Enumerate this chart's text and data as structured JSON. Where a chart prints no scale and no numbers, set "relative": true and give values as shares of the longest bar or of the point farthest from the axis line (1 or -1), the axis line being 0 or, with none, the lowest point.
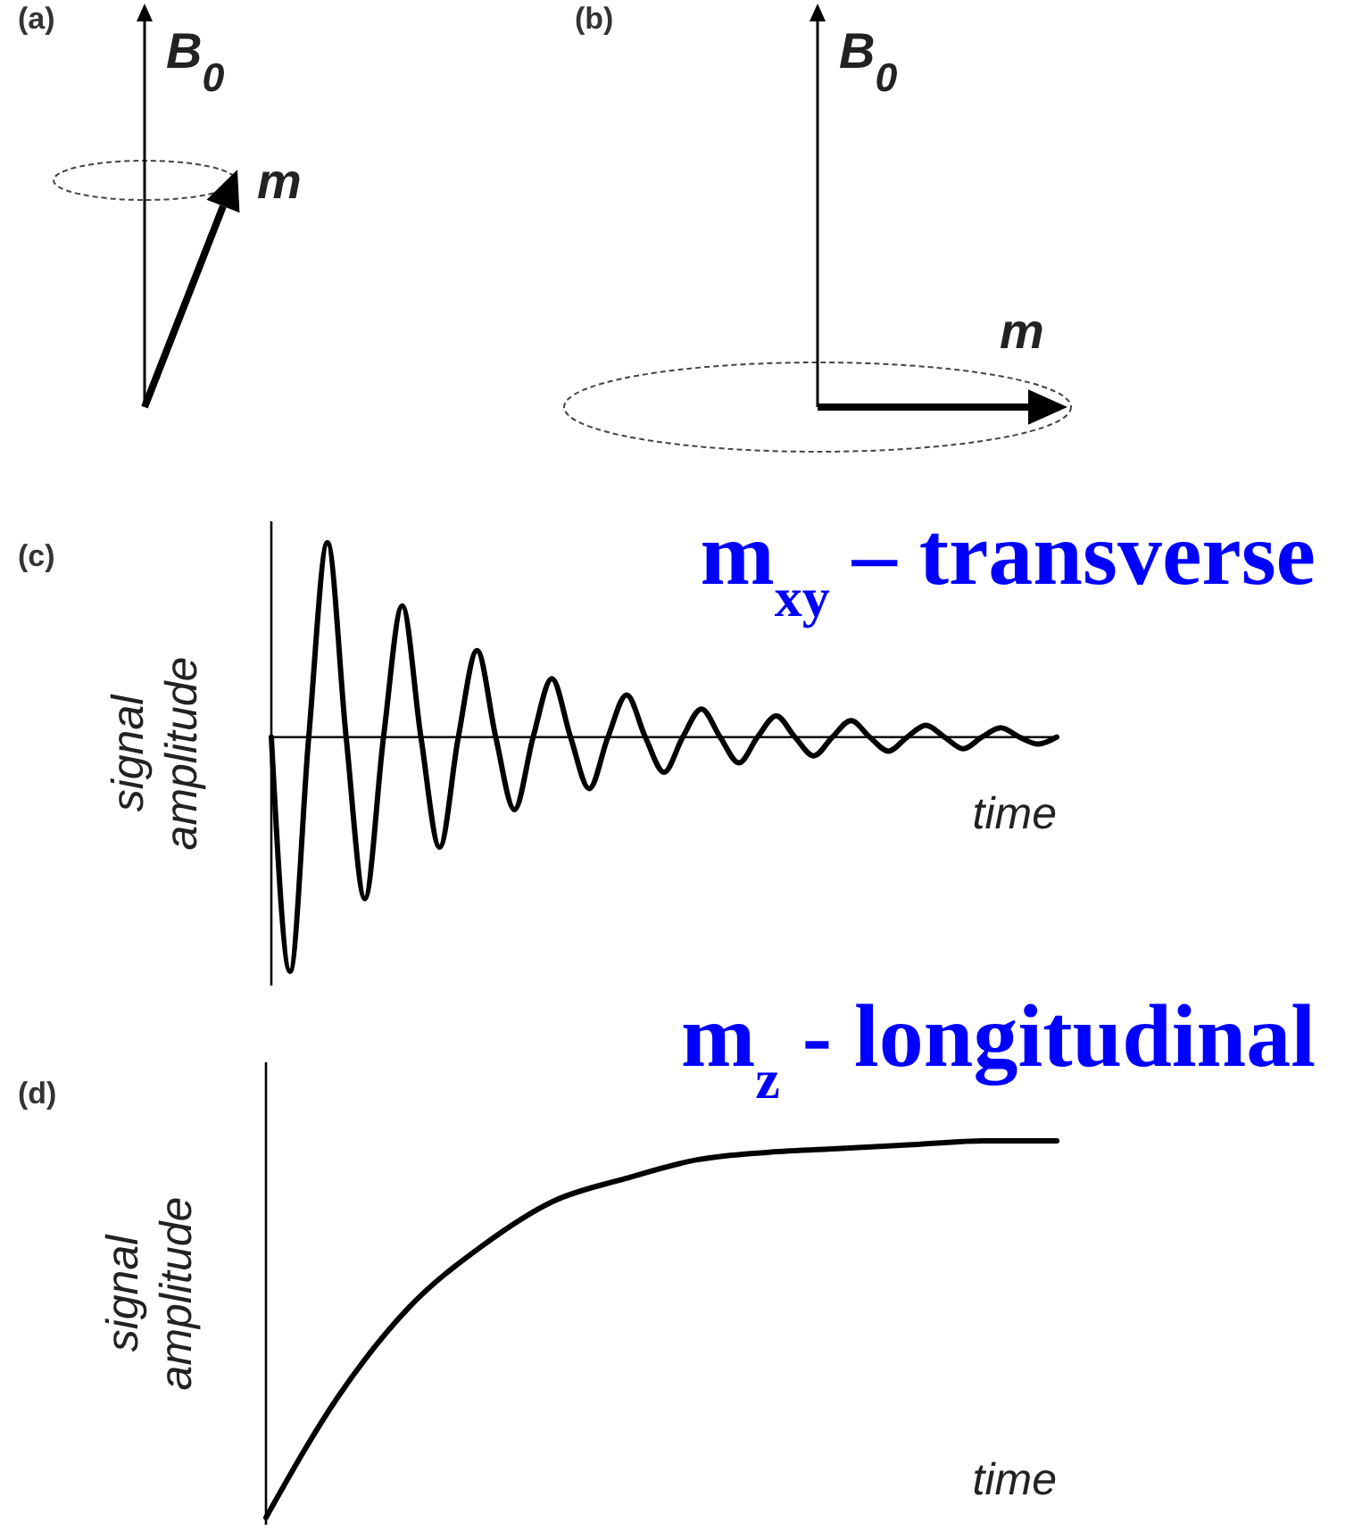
{
  "chart_data": [
    {
      "type": "other",
      "annotations": [
        "(a)",
        "B$_{0}$",
        "m"
      ]
    },
    {
      "type": "other",
      "annotations": [
        "(b)",
        "B$_{0}$",
        "m"
      ]
    },
    {
      "type": "line",
      "title": "m$_{xy}$ – transverse",
      "annotations": [
        "(c)"
      ],
      "xlabel": "time",
      "ylabel": "signal amplitude",
      "relative": true,
      "categories": [
        null,
        null,
        null,
        null,
        null,
        null,
        null,
        null,
        null,
        null,
        null,
        null,
        null,
        null,
        null,
        null,
        null,
        null,
        null,
        null,
        null,
        null,
        null,
        null,
        null,
        null,
        null,
        null,
        null,
        null,
        null,
        null,
        null,
        null,
        null,
        null,
        null,
        null,
        null,
        null,
        null,
        null,
        null
      ],
      "series": [
        {
          "color": "#000000",
          "values": [
            0,
            -1.0,
            0,
            0.83,
            0,
            -0.69,
            0,
            0.56,
            0,
            -0.47,
            0,
            0.37,
            0,
            -0.31,
            0,
            0.25,
            0,
            -0.22,
            0,
            0.18,
            0,
            -0.15,
            0,
            0.12,
            0,
            -0.11,
            0,
            0.09,
            0,
            -0.08,
            0,
            0.07,
            0,
            -0.06,
            0,
            0.05,
            0,
            -0.05,
            0,
            0.04,
            0,
            -0.03,
            0
          ]
        }
      ]
    },
    {
      "type": "line",
      "title": "m$_{z}$ - longitudinal",
      "annotations": [
        "(d)"
      ],
      "xlabel": "time",
      "ylabel": "signal amplitude",
      "relative": true,
      "categories": [
        null,
        null,
        null,
        null,
        null,
        null,
        null,
        null,
        null,
        null,
        null,
        null
      ],
      "series": [
        {
          "color": "#000000",
          "values": [
            0,
            0.32,
            0.56,
            0.72,
            0.84,
            0.9,
            0.95,
            0.97,
            0.98,
            0.99,
            1.0,
            1.0
          ]
        }
      ]
    }
  ]
}
